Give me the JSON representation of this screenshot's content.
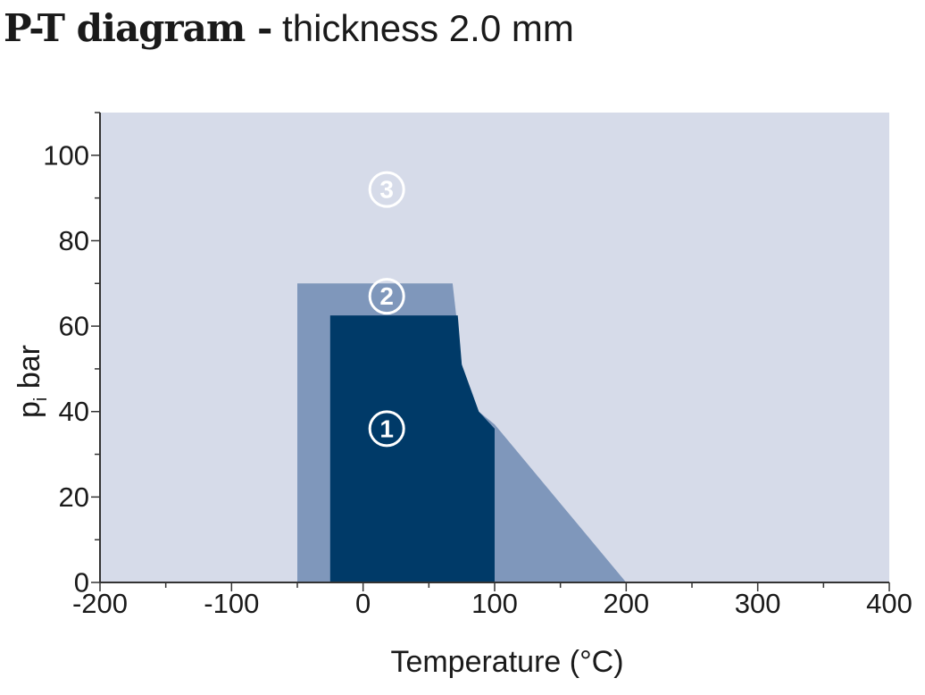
{
  "title": {
    "bold": "P-T diagram -",
    "light": " thickness 2.0 mm"
  },
  "colors": {
    "background_region": "#d6dbe9",
    "region2": "#7f97bb",
    "region1": "#003a68",
    "axis": "#333333",
    "label_light": "#ffffff",
    "label_dark": "#ffffff"
  },
  "chart_data": {
    "type": "area",
    "title": "P-T diagram - thickness 2.0 mm",
    "xlabel": "Temperature (°C)",
    "ylabel": "p",
    "ylabel_subscript": "i",
    "ylabel_unit": " bar",
    "xlim": [
      -200,
      400
    ],
    "ylim": [
      0,
      110
    ],
    "xticks": [
      -200,
      -100,
      0,
      100,
      200,
      300,
      400
    ],
    "yticks": [
      0,
      20,
      40,
      60,
      80,
      100
    ],
    "grid": false,
    "regions": [
      {
        "name": "3",
        "label": "③",
        "polygon": [
          [
            -200,
            0
          ],
          [
            400,
            0
          ],
          [
            400,
            110
          ],
          [
            -200,
            110
          ]
        ]
      },
      {
        "name": "2",
        "label": "②",
        "polygon": [
          [
            -50,
            0
          ],
          [
            -50,
            70
          ],
          [
            68,
            70
          ],
          [
            75,
            51
          ],
          [
            88,
            40
          ],
          [
            100,
            37
          ],
          [
            200,
            0
          ]
        ]
      },
      {
        "name": "1",
        "label": "①",
        "polygon": [
          [
            -25,
            0
          ],
          [
            -25,
            62.5
          ],
          [
            72,
            62.5
          ],
          [
            75,
            51
          ],
          [
            88,
            40
          ],
          [
            100,
            36
          ],
          [
            100,
            0
          ]
        ]
      }
    ],
    "label_positions": [
      {
        "region": "3",
        "x": 18,
        "y": 92
      },
      {
        "region": "2",
        "x": 18,
        "y": 67
      },
      {
        "region": "1",
        "x": 18,
        "y": 36
      }
    ]
  }
}
